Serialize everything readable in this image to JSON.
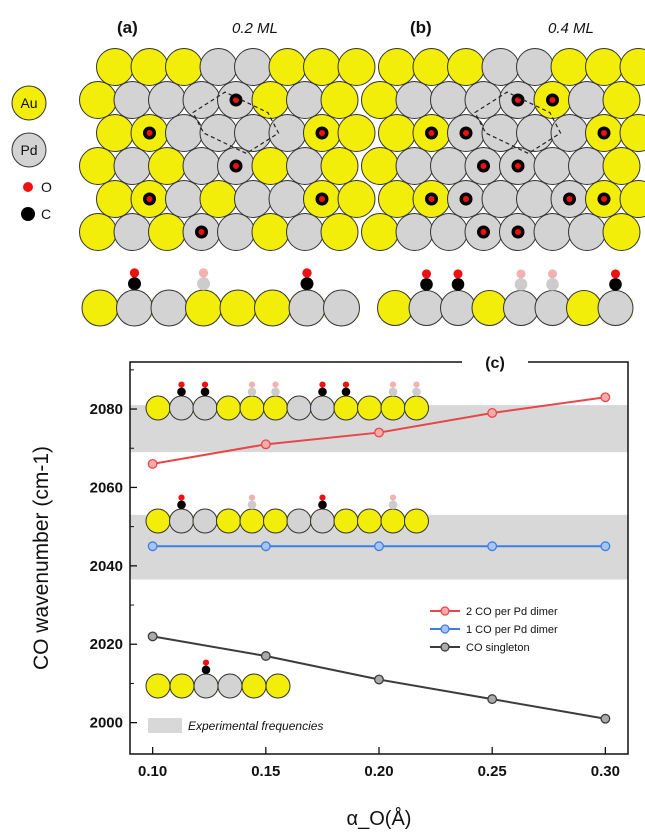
{
  "colors": {
    "au": "#f2ee0a",
    "pd": "#d3d3d3",
    "o": "#ee1111",
    "c": "#000000",
    "o_faint": "#f2b2b2",
    "c_faint": "#cccccc",
    "band": "#d8d8d8",
    "series_2co": "#e8474a",
    "series_1co": "#3d7ee6",
    "series_single": "#3c3c3c"
  },
  "panel_a": {
    "label": "(a)",
    "coverage": "0.2 ML"
  },
  "panel_b": {
    "label": "(b)",
    "coverage": "0.4 ML"
  },
  "legend_atoms": {
    "au": "Au",
    "pd": "Pd",
    "o": "O",
    "c": "C"
  },
  "lattice": {
    "a_rows": [
      "AAAPPAAA",
      "APPPPAPA",
      "AAPPPPAA",
      "APAPPAPA",
      "AAPAPPAA",
      "APAPPAPA"
    ],
    "a_ads": [
      [
        1,
        4
      ],
      [
        2,
        1
      ],
      [
        2,
        6
      ],
      [
        3,
        4
      ],
      [
        4,
        1
      ],
      [
        4,
        6
      ],
      [
        5,
        3
      ],
      [
        6,
        1
      ],
      [
        6,
        6
      ]
    ],
    "b_rows": [
      "AAAPPAAA",
      "APPPPAPA",
      "AAPPPPAA",
      "APPPPPPA",
      "AAPPPPAA",
      "APPPPPPA"
    ],
    "b_ads": [
      [
        1,
        4
      ],
      [
        1,
        5
      ],
      [
        2,
        1
      ],
      [
        2,
        2
      ],
      [
        2,
        6
      ],
      [
        3,
        3
      ],
      [
        3,
        4
      ],
      [
        4,
        1
      ],
      [
        4,
        2
      ],
      [
        4,
        5
      ],
      [
        4,
        6
      ],
      [
        5,
        3
      ],
      [
        5,
        4
      ],
      [
        6,
        1
      ],
      [
        6,
        2
      ],
      [
        6,
        5
      ],
      [
        6,
        6
      ]
    ]
  },
  "sideviews": {
    "a": {
      "atoms": "APPAAAPP",
      "ads": [
        [
          1,
          "on"
        ],
        [
          3,
          "faint"
        ],
        [
          6,
          "on"
        ]
      ]
    },
    "b": {
      "atoms": "APPAPPAP",
      "ads": [
        [
          1,
          "on"
        ],
        [
          2,
          "on"
        ],
        [
          4,
          "faint"
        ],
        [
          5,
          "faint"
        ],
        [
          7,
          "on"
        ]
      ]
    },
    "c1": {
      "atoms": "APPAAAPPAAAA",
      "ads": [
        [
          1,
          "on"
        ],
        [
          2,
          "on"
        ],
        [
          4,
          "faint"
        ],
        [
          5,
          "faint"
        ],
        [
          7,
          "on"
        ],
        [
          8,
          "on"
        ],
        [
          10,
          "faint"
        ],
        [
          11,
          "faint"
        ]
      ]
    },
    "c2": {
      "atoms": "APPAAAPPAAAA",
      "ads": [
        [
          1,
          "on"
        ],
        [
          4,
          "faint"
        ],
        [
          7,
          "on"
        ],
        [
          10,
          "faint"
        ]
      ]
    },
    "c3": {
      "atoms": "AAPPAA",
      "ads": [
        [
          2,
          "on"
        ]
      ]
    }
  },
  "chart_data": {
    "type": "line",
    "panel_label": "(c)",
    "xlabel": "α_O(Å)",
    "ylabel": "CO wavenumber (cm-1)",
    "xlim": [
      0.09,
      0.31
    ],
    "ylim": [
      1992,
      2092
    ],
    "xticks": [
      0.1,
      0.15,
      0.2,
      0.25,
      0.3
    ],
    "xtick_labels": [
      "0.10",
      "0.15",
      "0.20",
      "0.25",
      "0.30"
    ],
    "yticks": [
      2000,
      2020,
      2040,
      2060,
      2080
    ],
    "ytick_labels": [
      "2000",
      "2020",
      "2040",
      "2060",
      "2080"
    ],
    "x": [
      0.1,
      0.15,
      0.2,
      0.25,
      0.3
    ],
    "series": [
      {
        "name": "2 CO per Pd dimer",
        "values": [
          2066,
          2071,
          2074,
          2079,
          2083
        ]
      },
      {
        "name": "1 CO per Pd dimer",
        "values": [
          2045,
          2045,
          2045,
          2045,
          2045
        ]
      },
      {
        "name": "CO singleton",
        "values": [
          2022,
          2017,
          2011,
          2006,
          2001
        ]
      }
    ],
    "bands": [
      [
        2069,
        2081
      ],
      [
        2036.5,
        2053
      ]
    ],
    "band_label": "Experimental frequencies",
    "legend_position": "center-right"
  }
}
